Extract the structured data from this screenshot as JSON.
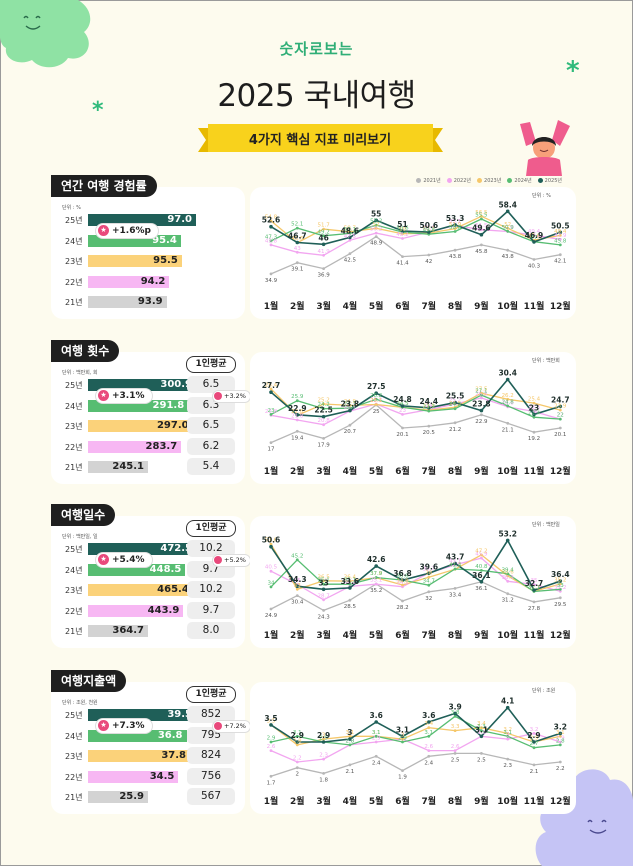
{
  "header": {
    "subtitle": "숫자로보는",
    "title": "2025 국내여행",
    "ribbon": "4가지 핵심 지표 미리보기"
  },
  "legend": [
    "2021년",
    "2022년",
    "2023년",
    "2024년",
    "2025년"
  ],
  "colors": {
    "2021": "#b7b7b7",
    "2022": "#f2a6f0",
    "2023": "#f5c76a",
    "2024": "#57bd72",
    "2025": "#1f5f58",
    "bar2025": "#1f5f58",
    "bar2024": "#57bd72",
    "bar2023": "#fbd27a",
    "bar2022": "#f7b7f3",
    "bar2021": "#d3d3d3",
    "accent_green": "#2fba7b",
    "badge_pink": "#e9497c"
  },
  "months": [
    "1월",
    "2월",
    "3월",
    "4월",
    "5월",
    "6월",
    "7월",
    "8월",
    "9월",
    "10월",
    "11월",
    "12월"
  ],
  "sections": [
    {
      "title": "연간 여행 경험률",
      "bar_unit": "단위 : %",
      "chart_unit": "단위 : %",
      "years": [
        "25년",
        "24년",
        "23년",
        "22년",
        "21년"
      ],
      "values": [
        "97.0",
        "95.4",
        "95.5",
        "94.2",
        "93.9"
      ],
      "badge": "+1.6%p",
      "has_avg": false
    },
    {
      "title": "여행 횟수",
      "bar_unit": "단위 : 백만회, 회",
      "chart_unit": "단위 : 백만회",
      "years": [
        "25년",
        "24년",
        "23년",
        "22년",
        "21년"
      ],
      "values": [
        "300.9",
        "291.8",
        "297.0",
        "283.7",
        "245.1"
      ],
      "badge": "+3.1%",
      "has_avg": true,
      "avg_label": "1인평균",
      "avg_values": [
        "6.5",
        "6.3",
        "6.5",
        "6.2",
        "5.4"
      ],
      "avg_badge": "+3.2%"
    },
    {
      "title": "여행일수",
      "bar_unit": "단위 : 백만일, 일",
      "chart_unit": "단위 : 백만일",
      "years": [
        "25년",
        "24년",
        "23년",
        "22년",
        "21년"
      ],
      "values": [
        "472.5",
        "448.5",
        "465.4",
        "443.9",
        "364.7"
      ],
      "badge": "+5.4%",
      "has_avg": true,
      "avg_label": "1인평균",
      "avg_values": [
        "10.2",
        "9.7",
        "10.2",
        "9.7",
        "8.0"
      ],
      "avg_badge": "+5.2%"
    },
    {
      "title": "여행지출액",
      "bar_unit": "단위 : 조원, 천원",
      "chart_unit": "단위 : 조원",
      "years": [
        "25년",
        "24년",
        "23년",
        "22년",
        "21년"
      ],
      "values": [
        "39.5",
        "36.8",
        "37.8",
        "34.5",
        "25.9"
      ],
      "badge": "+7.3%",
      "has_avg": true,
      "avg_label": "1인평균",
      "avg_values": [
        "852",
        "795",
        "824",
        "756",
        "567"
      ],
      "avg_badge": "+7.2%"
    }
  ],
  "chart_data": [
    {
      "type": "line",
      "x": [
        "1월",
        "2월",
        "3월",
        "4월",
        "5월",
        "6월",
        "7월",
        "8월",
        "9월",
        "10월",
        "11월",
        "12월"
      ],
      "ylim": [
        30,
        60
      ],
      "series": [
        {
          "name": "2021년",
          "values": [
            34.9,
            39.1,
            36.9,
            42.5,
            48.9,
            41.4,
            42.0,
            43.8,
            45.8,
            43.8,
            40.3,
            42.1
          ]
        },
        {
          "name": "2022년",
          "values": [
            45.8,
            43.0,
            41.9,
            47.5,
            50.2,
            48.2,
            50.6,
            53.1,
            51.5,
            50.8,
            49.4,
            47.9
          ]
        },
        {
          "name": "2023년",
          "values": [
            54.8,
            46.6,
            51.7,
            50.7,
            52.0,
            50.0,
            50.2,
            51.9,
            56.5,
            52.0,
            47.6,
            49.4
          ]
        },
        {
          "name": "2024년",
          "values": [
            47.3,
            52.1,
            49.2,
            50.1,
            53.2,
            50.6,
            49.8,
            50.8,
            55.5,
            50.9,
            47.0,
            45.8
          ]
        },
        {
          "name": "2025년",
          "values": [
            52.6,
            46.7,
            46.0,
            48.6,
            55.0,
            51.0,
            50.6,
            53.3,
            49.6,
            58.4,
            46.9,
            50.5
          ]
        }
      ]
    },
    {
      "type": "line",
      "x": [
        "1월",
        "2월",
        "3월",
        "4월",
        "5월",
        "6월",
        "7월",
        "8월",
        "9월",
        "10월",
        "11월",
        "12월"
      ],
      "ylim": [
        15,
        32
      ],
      "series": [
        {
          "name": "2021년",
          "values": [
            17.0,
            19.4,
            17.9,
            20.7,
            25.0,
            20.1,
            20.5,
            21.2,
            22.9,
            21.1,
            19.2,
            20.1
          ]
        },
        {
          "name": "2022년",
          "values": [
            22.8,
            21.8,
            20.8,
            23.7,
            25.2,
            23.0,
            24.0,
            25.2,
            26.5,
            24.6,
            23.6,
            22.0
          ]
        },
        {
          "name": "2023年",
          "values": [
            28.4,
            22.8,
            25.2,
            24.9,
            25.1,
            24.5,
            23.9,
            24.5,
            27.5,
            26.2,
            25.4,
            23.9
          ]
        },
        {
          "name": "2024년",
          "values": [
            23.0,
            25.9,
            24.2,
            24.3,
            26.2,
            24.5,
            23.7,
            24.2,
            27.1,
            24.8,
            22.4,
            22.0
          ]
        },
        {
          "name": "2025년",
          "values": [
            27.7,
            22.9,
            22.5,
            23.8,
            27.5,
            24.8,
            24.4,
            25.5,
            23.8,
            30.4,
            23.0,
            24.7
          ]
        }
      ]
    },
    {
      "type": "line",
      "x": [
        "1월",
        "2월",
        "3월",
        "4월",
        "5월",
        "6월",
        "7월",
        "8월",
        "9월",
        "10월",
        "11월",
        "12월"
      ],
      "ylim": [
        22,
        55
      ],
      "series": [
        {
          "name": "2021년",
          "values": [
            24.9,
            30.4,
            24.3,
            28.5,
            35.2,
            28.2,
            32.0,
            33.4,
            36.1,
            31.2,
            27.8,
            29.5
          ]
        },
        {
          "name": "2022년",
          "values": [
            40.5,
            35.0,
            28.7,
            34.2,
            35.1,
            34.1,
            39.7,
            43.1,
            45.9,
            36.3,
            35.0,
            32.2
          ]
        },
        {
          "name": "2023년",
          "values": [
            51.6,
            33.0,
            36.5,
            36.4,
            37.8,
            34.8,
            38.0,
            41.3,
            47.2,
            38.6,
            32.2,
            35.2
          ]
        },
        {
          "name": "2024년",
          "values": [
            34.0,
            45.2,
            35.1,
            35.1,
            37.9,
            36.8,
            34.7,
            41.4,
            40.8,
            39.4,
            32.1,
            33.0
          ]
        },
        {
          "name": "2025년",
          "values": [
            50.6,
            34.3,
            33.0,
            33.6,
            42.6,
            36.8,
            39.6,
            43.7,
            36.1,
            53.2,
            32.7,
            36.4
          ]
        }
      ]
    },
    {
      "type": "line",
      "x": [
        "1월",
        "2월",
        "3월",
        "4월",
        "5월",
        "6월",
        "7월",
        "8월",
        "9월",
        "10월",
        "11월",
        "12월"
      ],
      "ylim": [
        1.5,
        4.3
      ],
      "series": [
        {
          "name": "2021년",
          "values": [
            1.7,
            2.0,
            1.8,
            2.1,
            2.4,
            1.9,
            2.4,
            2.5,
            2.5,
            2.3,
            2.1,
            2.2
          ]
        },
        {
          "name": "2022년",
          "values": [
            2.6,
            2.2,
            2.3,
            2.8,
            2.9,
            3.0,
            2.6,
            2.6,
            3.1,
            3.0,
            3.2,
            2.9
          ]
        },
        {
          "name": "2023년",
          "values": [
            3.5,
            2.8,
            3.0,
            3.1,
            3.1,
            3.0,
            3.4,
            3.3,
            3.4,
            3.2,
            2.9,
            3.1
          ]
        },
        {
          "name": "2024년",
          "values": [
            2.9,
            3.1,
            2.9,
            2.8,
            3.1,
            2.9,
            3.1,
            3.8,
            3.3,
            3.1,
            2.7,
            2.8
          ]
        },
        {
          "name": "2025년",
          "values": [
            3.5,
            2.9,
            2.9,
            3.0,
            3.6,
            3.1,
            3.6,
            3.9,
            3.1,
            4.1,
            2.9,
            3.2
          ]
        }
      ]
    }
  ]
}
